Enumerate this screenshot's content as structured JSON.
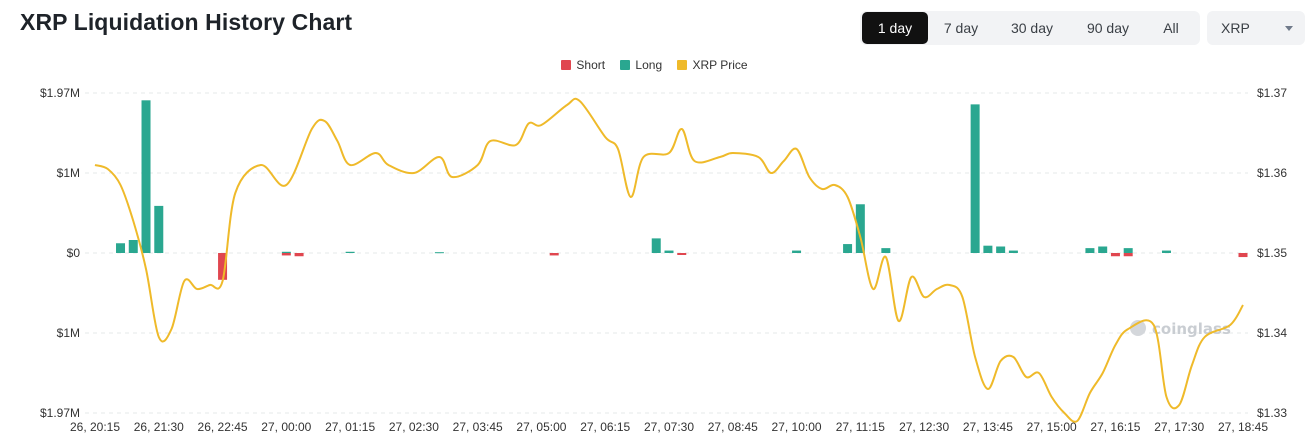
{
  "header": {
    "title": "XRP Liquidation History Chart",
    "ranges": [
      "1 day",
      "7 day",
      "30 day",
      "90 day",
      "All"
    ],
    "active_range": "1 day",
    "coin_select": "XRP"
  },
  "colors": {
    "short": "#e0464f",
    "long": "#2aa790",
    "price": "#efba2a"
  },
  "watermark": "coinglass",
  "chart_data": {
    "type": "bar",
    "legend": [
      "Short",
      "Long",
      "XRP Price"
    ],
    "legend_position": "top-center",
    "grid": true,
    "categories": [
      "26, 20:15",
      "26, 21:30",
      "26, 22:45",
      "27, 00:00",
      "27, 01:15",
      "27, 02:30",
      "27, 03:45",
      "27, 05:00",
      "27, 06:15",
      "27, 07:30",
      "27, 08:45",
      "27, 10:00",
      "27, 11:15",
      "27, 12:30",
      "27, 13:45",
      "27, 15:00",
      "27, 16:15",
      "27, 17:30",
      "27, 18:45"
    ],
    "y_left": {
      "ticks": [
        "$1.97M",
        "$1M",
        "$0",
        "$1M",
        "$1.97M"
      ],
      "range": [
        -1970000,
        1970000
      ]
    },
    "y_right": {
      "ticks": [
        "$1.37",
        "$1.36",
        "$1.35",
        "$1.34",
        "$1.33"
      ],
      "range": [
        1.33,
        1.37
      ]
    },
    "long": [
      {
        "t": "26, 20:45",
        "v": 120000
      },
      {
        "t": "26, 21:00",
        "v": 160000
      },
      {
        "t": "26, 21:15",
        "v": 1880000
      },
      {
        "t": "26, 21:30",
        "v": 580000
      },
      {
        "t": "27, 00:00",
        "v": 15000
      },
      {
        "t": "27, 01:15",
        "v": 15000
      },
      {
        "t": "27, 03:00",
        "v": 10000
      },
      {
        "t": "27, 07:15",
        "v": 180000
      },
      {
        "t": "27, 07:30",
        "v": 30000
      },
      {
        "t": "27, 10:00",
        "v": 30000
      },
      {
        "t": "27, 11:00",
        "v": 110000
      },
      {
        "t": "27, 11:15",
        "v": 600000
      },
      {
        "t": "27, 11:45",
        "v": 60000
      },
      {
        "t": "27, 13:30",
        "v": 1830000
      },
      {
        "t": "27, 13:45",
        "v": 90000
      },
      {
        "t": "27, 14:00",
        "v": 80000
      },
      {
        "t": "27, 14:15",
        "v": 30000
      },
      {
        "t": "27, 15:45",
        "v": 60000
      },
      {
        "t": "27, 16:00",
        "v": 80000
      },
      {
        "t": "27, 16:30",
        "v": 60000
      },
      {
        "t": "27, 17:15",
        "v": 30000
      }
    ],
    "short": [
      {
        "t": "26, 22:45",
        "v": 330000
      },
      {
        "t": "27, 00:00",
        "v": 30000
      },
      {
        "t": "27, 00:15",
        "v": 40000
      },
      {
        "t": "27, 05:15",
        "v": 30000
      },
      {
        "t": "27, 07:45",
        "v": 10000
      },
      {
        "t": "27, 16:15",
        "v": 40000
      },
      {
        "t": "27, 16:30",
        "v": 40000
      },
      {
        "t": "27, 18:45",
        "v": 50000
      }
    ],
    "price": [
      {
        "t": "26, 20:15",
        "v": 1.361
      },
      {
        "t": "26, 20:30",
        "v": 1.3605
      },
      {
        "t": "26, 20:45",
        "v": 1.3585
      },
      {
        "t": "26, 21:00",
        "v": 1.354
      },
      {
        "t": "26, 21:15",
        "v": 1.348
      },
      {
        "t": "26, 21:30",
        "v": 1.3395
      },
      {
        "t": "26, 21:45",
        "v": 1.3405
      },
      {
        "t": "26, 22:00",
        "v": 1.3465
      },
      {
        "t": "26, 22:15",
        "v": 1.3455
      },
      {
        "t": "26, 22:30",
        "v": 1.346
      },
      {
        "t": "26, 22:45",
        "v": 1.3465
      },
      {
        "t": "27, 23:00",
        "v": 1.3575
      },
      {
        "t": "27, 23:30",
        "v": 1.361
      },
      {
        "t": "27, 00:00",
        "v": 1.3585
      },
      {
        "t": "27, 00:30",
        "v": 1.3655
      },
      {
        "t": "27, 00:45",
        "v": 1.3665
      },
      {
        "t": "27, 01:00",
        "v": 1.364
      },
      {
        "t": "27, 01:15",
        "v": 1.361
      },
      {
        "t": "27, 01:45",
        "v": 1.3625
      },
      {
        "t": "27, 02:00",
        "v": 1.361
      },
      {
        "t": "27, 02:30",
        "v": 1.36
      },
      {
        "t": "27, 03:00",
        "v": 1.362
      },
      {
        "t": "27, 03:15",
        "v": 1.3595
      },
      {
        "t": "27, 03:45",
        "v": 1.361
      },
      {
        "t": "27, 04:00",
        "v": 1.364
      },
      {
        "t": "27, 04:30",
        "v": 1.3635
      },
      {
        "t": "27, 04:45",
        "v": 1.3662
      },
      {
        "t": "27, 05:00",
        "v": 1.366
      },
      {
        "t": "27, 05:30",
        "v": 1.3685
      },
      {
        "t": "27, 05:45",
        "v": 1.369
      },
      {
        "t": "27, 06:15",
        "v": 1.3645
      },
      {
        "t": "27, 06:30",
        "v": 1.363
      },
      {
        "t": "27, 06:45",
        "v": 1.357
      },
      {
        "t": "27, 07:00",
        "v": 1.362
      },
      {
        "t": "27, 07:30",
        "v": 1.3625
      },
      {
        "t": "27, 07:45",
        "v": 1.3655
      },
      {
        "t": "27, 08:00",
        "v": 1.3615
      },
      {
        "t": "27, 08:30",
        "v": 1.362
      },
      {
        "t": "27, 08:45",
        "v": 1.3625
      },
      {
        "t": "27, 09:15",
        "v": 1.362
      },
      {
        "t": "27, 09:30",
        "v": 1.36
      },
      {
        "t": "27, 09:45",
        "v": 1.3615
      },
      {
        "t": "27, 10:00",
        "v": 1.363
      },
      {
        "t": "27, 10:15",
        "v": 1.3595
      },
      {
        "t": "27, 10:30",
        "v": 1.358
      },
      {
        "t": "27, 10:45",
        "v": 1.3585
      },
      {
        "t": "27, 11:00",
        "v": 1.357
      },
      {
        "t": "27, 11:15",
        "v": 1.352
      },
      {
        "t": "27, 11:30",
        "v": 1.3455
      },
      {
        "t": "27, 11:45",
        "v": 1.3495
      },
      {
        "t": "27, 12:00",
        "v": 1.3415
      },
      {
        "t": "27, 12:15",
        "v": 1.347
      },
      {
        "t": "27, 12:30",
        "v": 1.3445
      },
      {
        "t": "27, 12:45",
        "v": 1.3455
      },
      {
        "t": "27, 13:00",
        "v": 1.346
      },
      {
        "t": "27, 13:15",
        "v": 1.3445
      },
      {
        "t": "27, 13:30",
        "v": 1.337
      },
      {
        "t": "27, 13:45",
        "v": 1.333
      },
      {
        "t": "27, 14:00",
        "v": 1.3365
      },
      {
        "t": "27, 14:15",
        "v": 1.337
      },
      {
        "t": "27, 14:30",
        "v": 1.3345
      },
      {
        "t": "27, 14:45",
        "v": 1.335
      },
      {
        "t": "27, 15:00",
        "v": 1.332
      },
      {
        "t": "27, 15:15",
        "v": 1.33
      },
      {
        "t": "27, 15:30",
        "v": 1.329
      },
      {
        "t": "27, 15:45",
        "v": 1.3325
      },
      {
        "t": "27, 16:00",
        "v": 1.335
      },
      {
        "t": "27, 16:15",
        "v": 1.3385
      },
      {
        "t": "27, 16:30",
        "v": 1.3405
      },
      {
        "t": "27, 17:00",
        "v": 1.341
      },
      {
        "t": "27, 17:15",
        "v": 1.332
      },
      {
        "t": "27, 17:30",
        "v": 1.331
      },
      {
        "t": "27, 17:45",
        "v": 1.336
      },
      {
        "t": "27, 18:00",
        "v": 1.3395
      },
      {
        "t": "27, 18:30",
        "v": 1.341
      },
      {
        "t": "27, 18:45",
        "v": 1.3435
      }
    ]
  }
}
